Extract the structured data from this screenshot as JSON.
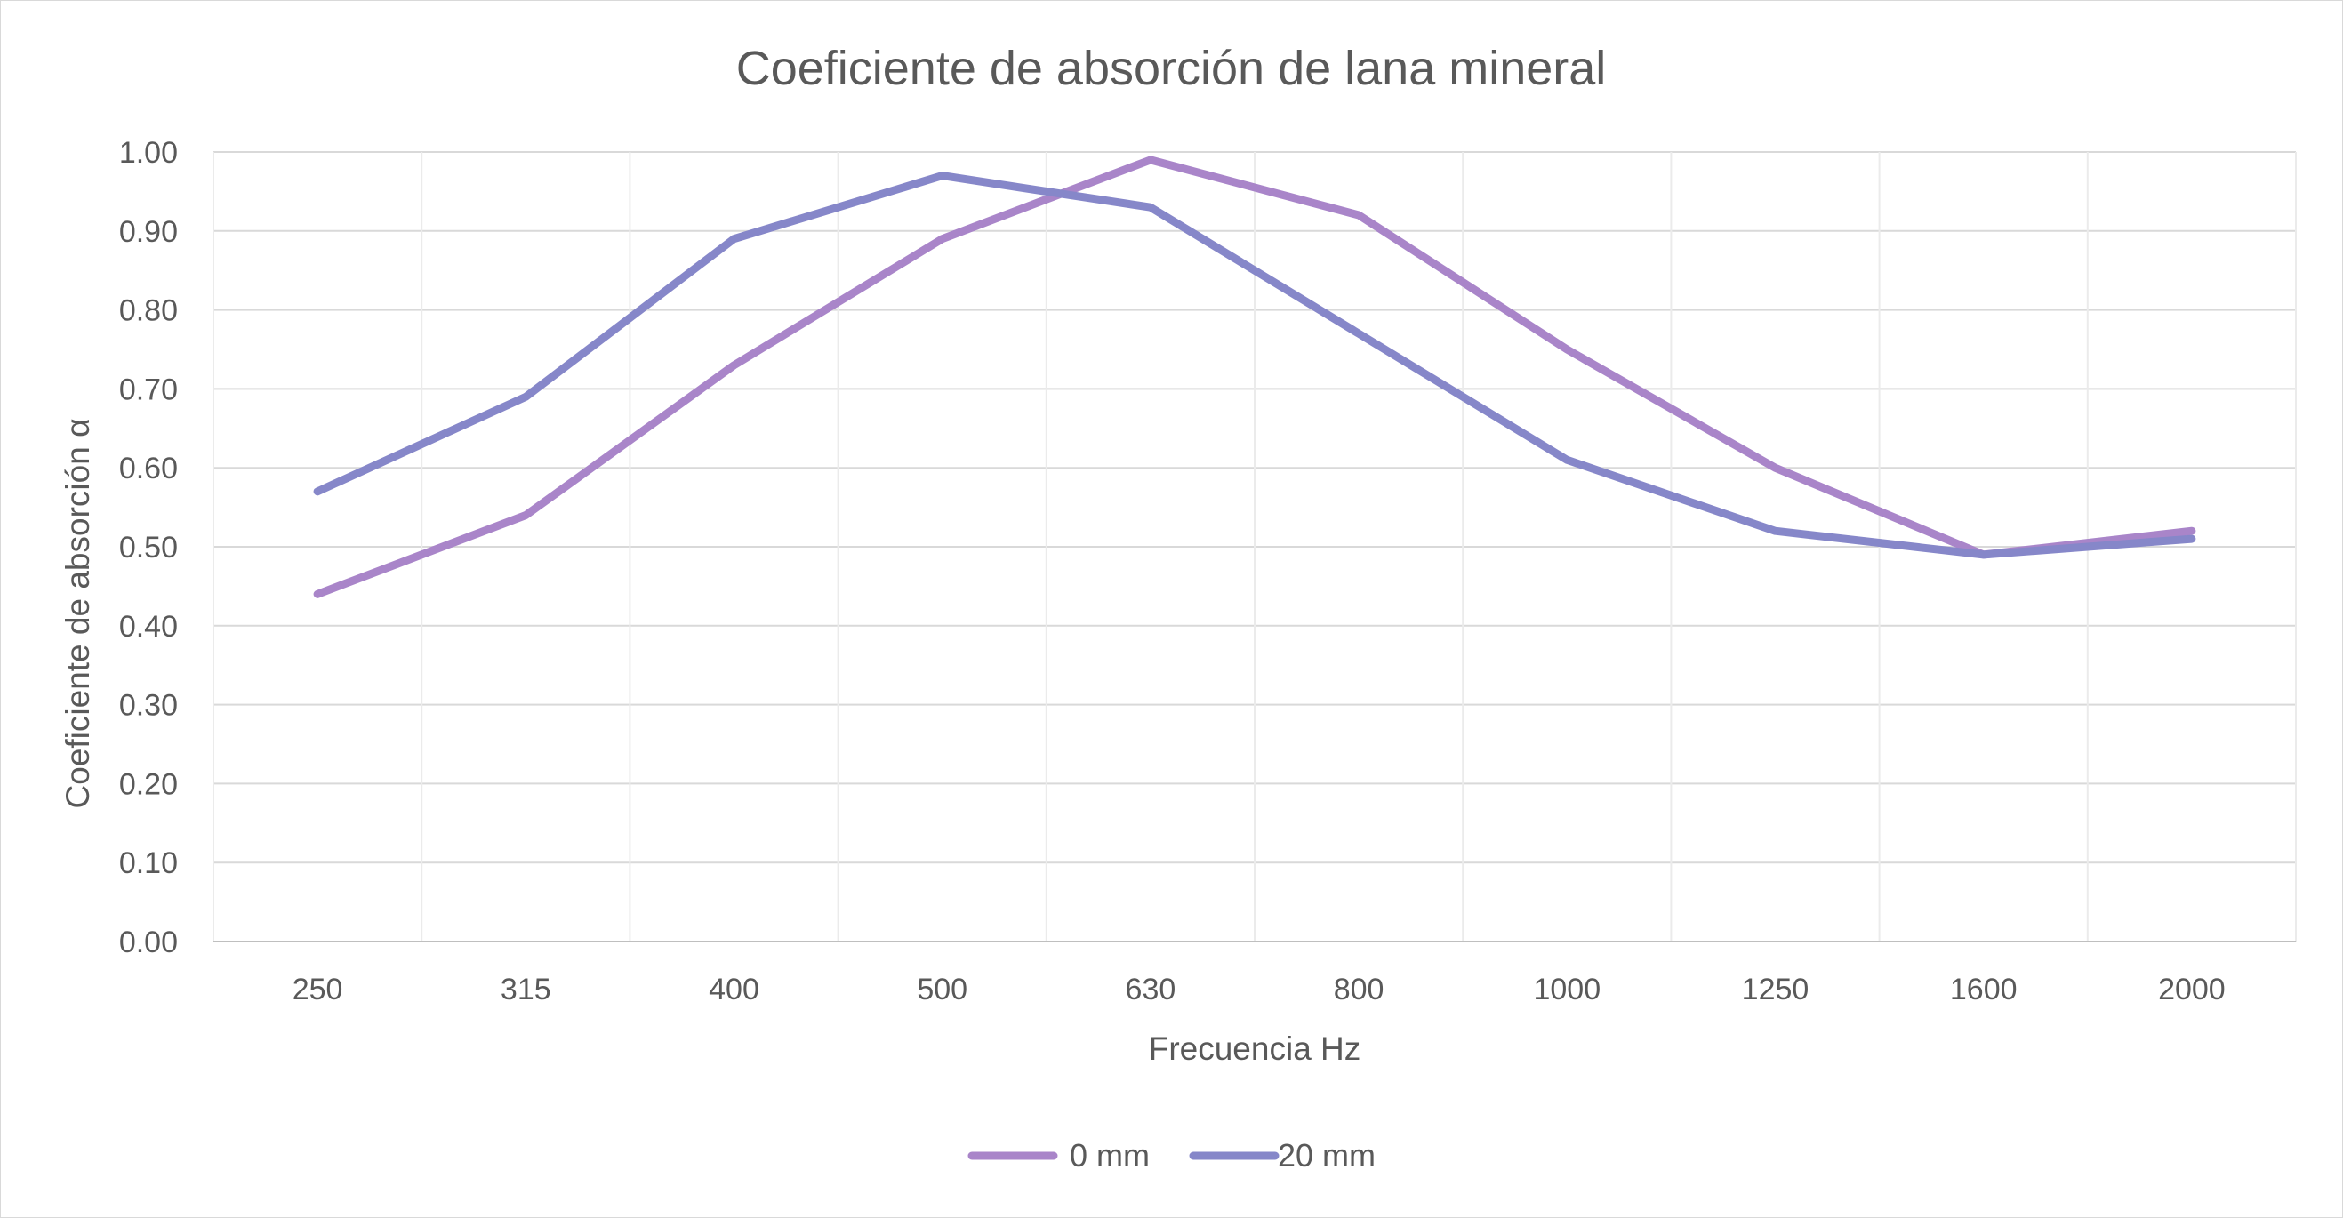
{
  "chart_data": {
    "type": "line",
    "title": "Coeficiente de absorción de lana mineral",
    "xlabel": "Frecuencia Hz",
    "ylabel": "Coeficiente de absorción α",
    "categories": [
      "250",
      "315",
      "400",
      "500",
      "630",
      "800",
      "1000",
      "1250",
      "1600",
      "2000"
    ],
    "ylim": [
      0,
      1
    ],
    "yticks": [
      "0.00",
      "0.10",
      "0.20",
      "0.30",
      "0.40",
      "0.50",
      "0.60",
      "0.70",
      "0.80",
      "0.90",
      "1.00"
    ],
    "grid": true,
    "legend_position": "bottom",
    "series": [
      {
        "name": "0 mm",
        "color": "#a985c9",
        "values": [
          0.44,
          0.54,
          0.73,
          0.89,
          0.99,
          0.92,
          0.75,
          0.6,
          0.49,
          0.52
        ]
      },
      {
        "name": "20 mm",
        "color": "#8687c9",
        "values": [
          0.57,
          0.69,
          0.89,
          0.97,
          0.93,
          0.77,
          0.61,
          0.52,
          0.49,
          0.51
        ]
      }
    ]
  }
}
